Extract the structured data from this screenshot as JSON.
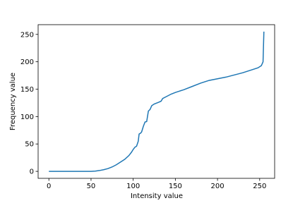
{
  "chart_data": {
    "type": "line",
    "xlabel": "Intensity value",
    "ylabel": "Frequency value",
    "x": [
      0,
      10,
      20,
      30,
      40,
      50,
      55,
      60,
      65,
      70,
      75,
      80,
      85,
      90,
      95,
      98,
      100,
      102,
      104,
      106,
      107,
      109,
      110,
      112,
      114,
      116,
      118,
      120,
      122,
      125,
      130,
      133,
      135,
      140,
      145,
      150,
      160,
      170,
      180,
      190,
      200,
      210,
      220,
      230,
      240,
      248,
      252,
      254,
      255
    ],
    "series": [
      {
        "name": "Frequency",
        "color": "#1f77b4",
        "values": [
          0,
          0,
          0,
          0,
          0,
          0,
          0.5,
          1.5,
          3,
          5,
          8,
          12,
          17,
          22,
          29,
          35,
          40,
          44,
          46,
          55,
          68,
          70,
          72,
          82,
          90,
          91,
          110,
          113,
          120,
          123,
          126,
          128,
          133,
          137,
          141,
          144,
          149,
          155,
          161,
          166,
          169,
          172,
          176,
          180,
          185,
          189,
          193,
          200,
          255
        ]
      }
    ],
    "xlim": [
      -12.75,
      267.75
    ],
    "ylim": [
      -12.75,
      267.75
    ],
    "xticks": [
      0,
      50,
      100,
      150,
      200,
      250
    ],
    "yticks": [
      0,
      50,
      100,
      150,
      200,
      250
    ]
  }
}
